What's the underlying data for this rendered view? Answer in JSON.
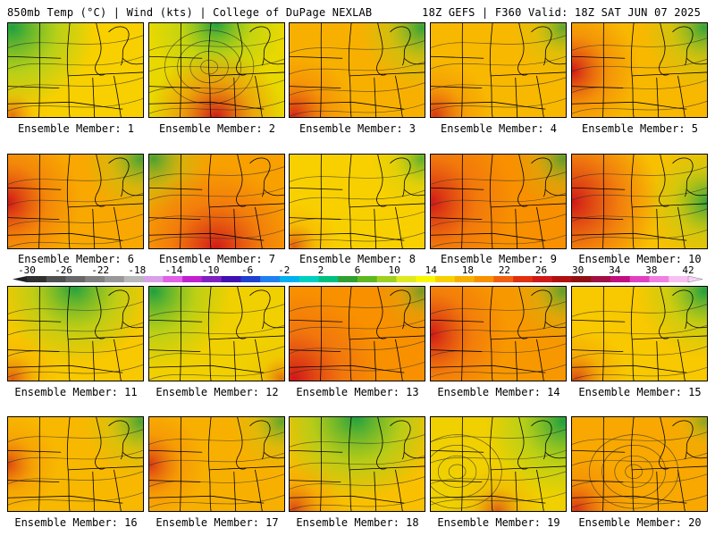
{
  "header": {
    "left_text": "850mb Temp (°C) | Wind (kts) | College of DuPage NEXLAB",
    "right_text": "18Z GEFS | F360 Valid: 18Z SAT JUN 07 2025"
  },
  "colorbar": {
    "labels": [
      "-30",
      "-26",
      "-22",
      "-18",
      "-14",
      "-10",
      "-6",
      "-2",
      "2",
      "6",
      "10",
      "14",
      "18",
      "22",
      "26",
      "30",
      "34",
      "38",
      "42"
    ],
    "colors": [
      "#303030",
      "#505050",
      "#686868",
      "#808080",
      "#989898",
      "#b8b8b8",
      "#d8a0e8",
      "#e060e8",
      "#c020d0",
      "#8020c0",
      "#4010b0",
      "#2040d0",
      "#2080f0",
      "#00b0f0",
      "#00d0c0",
      "#00c080",
      "#30a030",
      "#60b820",
      "#a0d020",
      "#e0e820",
      "#f8f800",
      "#f8d000",
      "#f8b000",
      "#f89000",
      "#f06010",
      "#e03010",
      "#d01818",
      "#b01010",
      "#901010",
      "#a01040",
      "#c01080",
      "#e040c0",
      "#f080e0",
      "#f8c0f0"
    ]
  },
  "panels": [
    {
      "label": "Ensemble Member: 1",
      "base": "#f8d000",
      "cool": 0.9,
      "hot": 0.1,
      "coolpos": "nw",
      "hotpos": "sw",
      "low": false
    },
    {
      "label": "Ensemble Member: 2",
      "base": "#e8d800",
      "cool": 0.6,
      "hot": 0.6,
      "coolpos": "n",
      "hotpos": "s",
      "low": true
    },
    {
      "label": "Ensemble Member: 3",
      "base": "#f8b000",
      "cool": 0.5,
      "hot": 0.5,
      "coolpos": "ne",
      "hotpos": "sw",
      "low": false
    },
    {
      "label": "Ensemble Member: 4",
      "base": "#f8b800",
      "cool": 0.3,
      "hot": 0.4,
      "coolpos": "ne",
      "hotpos": "sw",
      "low": false
    },
    {
      "label": "Ensemble Member: 5",
      "base": "#f8b800",
      "cool": 0.5,
      "hot": 0.6,
      "coolpos": "ne",
      "hotpos": "w",
      "low": false
    },
    {
      "label": "Ensemble Member: 6",
      "base": "#f8a800",
      "cool": 0.4,
      "hot": 0.7,
      "coolpos": "ne",
      "hotpos": "w",
      "low": false
    },
    {
      "label": "Ensemble Member: 7",
      "base": "#f8a000",
      "cool": 0.4,
      "hot": 0.9,
      "coolpos": "nw",
      "hotpos": "s",
      "low": false
    },
    {
      "label": "Ensemble Member: 8",
      "base": "#f8d000",
      "cool": 0.3,
      "hot": 0.2,
      "coolpos": "ne",
      "hotpos": "sw",
      "low": false
    },
    {
      "label": "Ensemble Member: 9",
      "base": "#f89000",
      "cool": 0.3,
      "hot": 0.9,
      "coolpos": "ne",
      "hotpos": "w",
      "low": false
    },
    {
      "label": "Ensemble Member: 10",
      "base": "#f8c000",
      "cool": 0.5,
      "hot": 1.0,
      "coolpos": "e",
      "hotpos": "w",
      "low": false
    },
    {
      "label": "Ensemble Member: 11",
      "base": "#f8c800",
      "cool": 0.8,
      "hot": 0.2,
      "coolpos": "n",
      "hotpos": "sw",
      "low": false
    },
    {
      "label": "Ensemble Member: 12",
      "base": "#f0d000",
      "cool": 0.8,
      "hot": 0.1,
      "coolpos": "nw",
      "hotpos": "se",
      "low": false
    },
    {
      "label": "Ensemble Member: 13",
      "base": "#f89000",
      "cool": 0.2,
      "hot": 1.0,
      "coolpos": "ne",
      "hotpos": "sw",
      "low": false
    },
    {
      "label": "Ensemble Member: 14",
      "base": "#f89800",
      "cool": 0.3,
      "hot": 0.8,
      "coolpos": "ne",
      "hotpos": "w",
      "low": false
    },
    {
      "label": "Ensemble Member: 15",
      "base": "#f8c800",
      "cool": 0.6,
      "hot": 0.3,
      "coolpos": "ne",
      "hotpos": "sw",
      "low": false
    },
    {
      "label": "Ensemble Member: 16",
      "base": "#f8b800",
      "cool": 0.4,
      "hot": 0.3,
      "coolpos": "ne",
      "hotpos": "w",
      "low": false
    },
    {
      "label": "Ensemble Member: 17",
      "base": "#f8b000",
      "cool": 0.3,
      "hot": 0.4,
      "coolpos": "ne",
      "hotpos": "w",
      "low": false
    },
    {
      "label": "Ensemble Member: 18",
      "base": "#f8c000",
      "cool": 0.9,
      "hot": 0.3,
      "coolpos": "n",
      "hotpos": "sw",
      "low": false
    },
    {
      "label": "Ensemble Member: 19",
      "base": "#f0d000",
      "cool": 0.8,
      "hot": 0.2,
      "coolpos": "ne",
      "hotpos": "s",
      "low": true
    },
    {
      "label": "Ensemble Member: 20",
      "base": "#f8a800",
      "cool": 0.1,
      "hot": 0.4,
      "coolpos": "ne",
      "hotpos": "sw",
      "low": true
    }
  ]
}
